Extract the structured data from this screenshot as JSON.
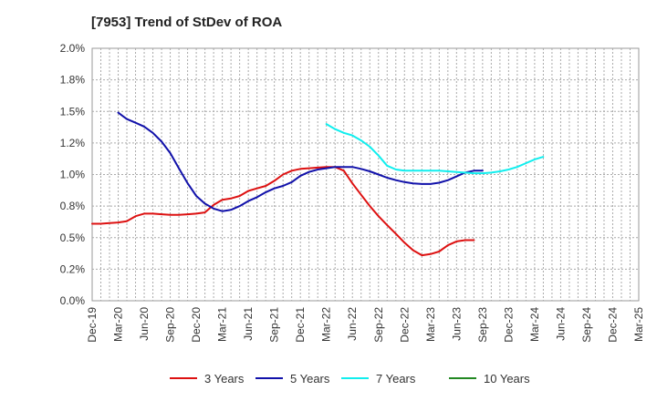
{
  "chart_data": {
    "type": "line",
    "title": "[7953]  Trend of StDev of ROA",
    "xlabel": "",
    "ylabel": "",
    "categories": [
      "Dec-19",
      "Mar-20",
      "Jun-20",
      "Sep-20",
      "Dec-20",
      "Mar-21",
      "Jun-21",
      "Sep-21",
      "Dec-21",
      "Mar-22",
      "Jun-22",
      "Sep-22",
      "Dec-22",
      "Mar-23",
      "Jun-23",
      "Sep-23",
      "Dec-23",
      "Mar-24",
      "Jun-24",
      "Sep-24",
      "Dec-24",
      "Mar-25"
    ],
    "y_ticks": [
      "0.0%",
      "0.2%",
      "0.5%",
      "0.8%",
      "1.0%",
      "1.2%",
      "1.5%",
      "1.8%",
      "2.0%"
    ],
    "ylim": [
      0,
      2.0
    ],
    "grid": true,
    "legend_position": "bottom",
    "series": [
      {
        "name": "3 Years",
        "color": "#dd1111",
        "points": [
          [
            0,
            0.61
          ],
          [
            0.33,
            0.61
          ],
          [
            0.67,
            0.615
          ],
          [
            1,
            0.62
          ],
          [
            1.33,
            0.63
          ],
          [
            1.67,
            0.67
          ],
          [
            2,
            0.69
          ],
          [
            2.33,
            0.69
          ],
          [
            2.67,
            0.685
          ],
          [
            3,
            0.68
          ],
          [
            3.33,
            0.68
          ],
          [
            3.67,
            0.685
          ],
          [
            4,
            0.69
          ],
          [
            4.33,
            0.7
          ],
          [
            4.67,
            0.76
          ],
          [
            5,
            0.8
          ],
          [
            5.33,
            0.81
          ],
          [
            5.67,
            0.83
          ],
          [
            6,
            0.87
          ],
          [
            6.33,
            0.89
          ],
          [
            6.67,
            0.91
          ],
          [
            7,
            0.95
          ],
          [
            7.33,
            1.0
          ],
          [
            7.67,
            1.03
          ],
          [
            8,
            1.045
          ],
          [
            8.33,
            1.05
          ],
          [
            8.67,
            1.055
          ],
          [
            9,
            1.06
          ],
          [
            9.33,
            1.06
          ],
          [
            9.67,
            1.03
          ],
          [
            10,
            0.93
          ],
          [
            10.33,
            0.84
          ],
          [
            10.67,
            0.75
          ],
          [
            11,
            0.67
          ],
          [
            11.33,
            0.6
          ],
          [
            11.67,
            0.53
          ],
          [
            12,
            0.46
          ],
          [
            12.33,
            0.4
          ],
          [
            12.67,
            0.36
          ],
          [
            13,
            0.37
          ],
          [
            13.33,
            0.39
          ],
          [
            13.67,
            0.44
          ],
          [
            14,
            0.47
          ],
          [
            14.33,
            0.48
          ],
          [
            14.67,
            0.48
          ]
        ]
      },
      {
        "name": "5 Years",
        "color": "#1111aa",
        "points": [
          [
            1,
            1.49
          ],
          [
            1.33,
            1.44
          ],
          [
            1.67,
            1.41
          ],
          [
            2,
            1.38
          ],
          [
            2.33,
            1.33
          ],
          [
            2.67,
            1.26
          ],
          [
            3,
            1.17
          ],
          [
            3.33,
            1.05
          ],
          [
            3.67,
            0.93
          ],
          [
            4,
            0.83
          ],
          [
            4.33,
            0.77
          ],
          [
            4.67,
            0.73
          ],
          [
            5,
            0.71
          ],
          [
            5.33,
            0.72
          ],
          [
            5.67,
            0.75
          ],
          [
            6,
            0.79
          ],
          [
            6.33,
            0.82
          ],
          [
            6.67,
            0.86
          ],
          [
            7,
            0.89
          ],
          [
            7.33,
            0.91
          ],
          [
            7.67,
            0.94
          ],
          [
            8,
            0.99
          ],
          [
            8.33,
            1.02
          ],
          [
            8.67,
            1.04
          ],
          [
            9,
            1.05
          ],
          [
            9.33,
            1.06
          ],
          [
            9.67,
            1.06
          ],
          [
            10,
            1.06
          ],
          [
            10.33,
            1.045
          ],
          [
            10.67,
            1.025
          ],
          [
            11,
            1.0
          ],
          [
            11.33,
            0.975
          ],
          [
            11.67,
            0.955
          ],
          [
            12,
            0.94
          ],
          [
            12.33,
            0.93
          ],
          [
            12.67,
            0.925
          ],
          [
            13,
            0.925
          ],
          [
            13.33,
            0.935
          ],
          [
            13.67,
            0.955
          ],
          [
            14,
            0.985
          ],
          [
            14.33,
            1.015
          ],
          [
            14.67,
            1.03
          ],
          [
            15,
            1.03
          ]
        ]
      },
      {
        "name": "7 Years",
        "color": "#11eeee",
        "points": [
          [
            9,
            1.4
          ],
          [
            9.33,
            1.36
          ],
          [
            9.67,
            1.33
          ],
          [
            10,
            1.31
          ],
          [
            10.33,
            1.27
          ],
          [
            10.67,
            1.22
          ],
          [
            11,
            1.15
          ],
          [
            11.33,
            1.07
          ],
          [
            11.67,
            1.04
          ],
          [
            12,
            1.03
          ],
          [
            12.33,
            1.03
          ],
          [
            12.67,
            1.03
          ],
          [
            13,
            1.03
          ],
          [
            13.33,
            1.03
          ],
          [
            13.67,
            1.025
          ],
          [
            14,
            1.02
          ],
          [
            14.33,
            1.015
          ],
          [
            14.67,
            1.01
          ],
          [
            15,
            1.01
          ],
          [
            15.33,
            1.015
          ],
          [
            15.67,
            1.025
          ],
          [
            16,
            1.04
          ],
          [
            16.33,
            1.06
          ],
          [
            16.67,
            1.09
          ],
          [
            17,
            1.12
          ],
          [
            17.33,
            1.14
          ]
        ]
      },
      {
        "name": "10 Years",
        "color": "#228822",
        "points": []
      }
    ]
  }
}
